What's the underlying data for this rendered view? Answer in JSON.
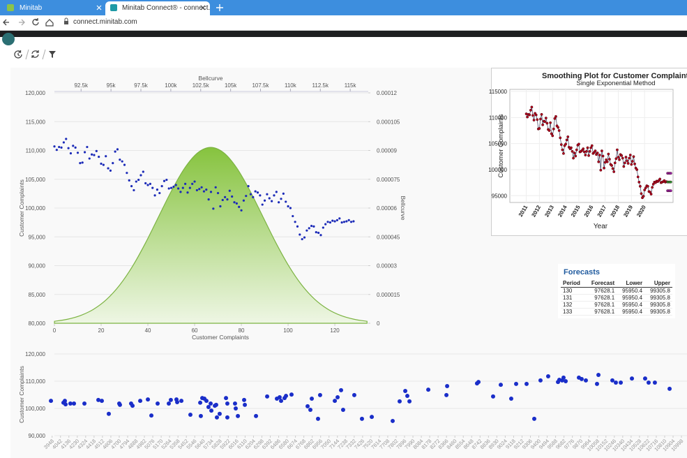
{
  "browser": {
    "tabs": [
      "Minitab",
      "Minitab Connect® - connect.mi"
    ],
    "url": "connect.minitab.com"
  },
  "forecast_table": {
    "title": "Forecasts",
    "columns": [
      "Period",
      "Forecast",
      "Lower",
      "Upper"
    ],
    "rows": [
      [
        130,
        97628.1,
        95950.4,
        99305.8
      ],
      [
        131,
        97628.1,
        95950.4,
        99305.8
      ],
      [
        132,
        97628.1,
        95950.4,
        99305.8
      ],
      [
        133,
        97628.1,
        95950.4,
        99305.8
      ]
    ]
  },
  "chart_data": [
    {
      "type": "scatter",
      "x_label": "Customer Complaints",
      "y_label": "Customer Complaints",
      "x2_label": "Bellcurve",
      "y2_label": "Bellcurve",
      "xlim": [
        0,
        134
      ],
      "xticks": [
        0,
        20,
        40,
        60,
        80,
        100,
        120
      ],
      "ylim": [
        80000,
        120000
      ],
      "yticks": [
        {
          "value": 80000,
          "label": "80,000"
        },
        {
          "value": 85000,
          "label": "85,000"
        },
        {
          "value": 90000,
          "label": "90,000"
        },
        {
          "value": 95000,
          "label": "95,000"
        },
        {
          "value": 100000,
          "label": "100,000"
        },
        {
          "value": 105000,
          "label": "105,000"
        },
        {
          "value": 110000,
          "label": "110,000"
        },
        {
          "value": 115000,
          "label": "115,000"
        },
        {
          "value": 120000,
          "label": "120,000"
        }
      ],
      "x2lim": [
        90270,
        116450
      ],
      "x2ticks": [
        {
          "value": 92500,
          "label": "92.5k"
        },
        {
          "value": 95000,
          "label": "95k"
        },
        {
          "value": 97500,
          "label": "97.5k"
        },
        {
          "value": 100000,
          "label": "100k"
        },
        {
          "value": 102500,
          "label": "102.5k"
        },
        {
          "value": 105000,
          "label": "105k"
        },
        {
          "value": 107500,
          "label": "107.5k"
        },
        {
          "value": 110000,
          "label": "110k"
        },
        {
          "value": 112500,
          "label": "112.5k"
        },
        {
          "value": 115000,
          "label": "115k"
        }
      ],
      "y2lim": [
        0,
        0.00012
      ],
      "y2ticks": [
        0,
        1.5e-05,
        3e-05,
        4.5e-05,
        6e-05,
        7.5e-05,
        9e-05,
        0.000105,
        0.00012
      ],
      "grid": true,
      "series": [
        {
          "type": "area",
          "axis": "y2",
          "color": "#7cb342",
          "x": [
            90275,
            91364,
            92453,
            93541,
            94630,
            95719,
            96808,
            97896,
            98985,
            100074,
            101163,
            102251,
            103340,
            104429,
            105518,
            106606,
            107695,
            108784,
            109873,
            110961,
            112050,
            113139,
            114228,
            115316,
            116405
          ],
          "values": [
            1.02e-06,
            2.09e-06,
            4.02e-06,
            7.29e-06,
            1.239e-05,
            1.981e-05,
            2.974e-05,
            4.193e-05,
            5.556e-05,
            6.914e-05,
            8.084e-05,
            8.878e-05,
            9.16e-05,
            8.878e-05,
            8.084e-05,
            6.914e-05,
            5.556e-05,
            4.193e-05,
            2.974e-05,
            1.981e-05,
            1.239e-05,
            7.29e-06,
            4.02e-06,
            2.09e-06,
            1.02e-06
          ]
        },
        {
          "type": "scatter",
          "color": "#1c2bb8",
          "values": [
            110700,
            110100,
            110600,
            110500,
            111400,
            112000,
            110400,
            109500,
            110800,
            110500,
            109600,
            107800,
            107900,
            109700,
            110600,
            108600,
            109300,
            109200,
            109900,
            108900,
            107700,
            107500,
            109000,
            106900,
            106500,
            107800,
            109800,
            110200,
            108400,
            108100,
            107500,
            106100,
            104800,
            103800,
            103100,
            104600,
            104900,
            105700,
            106300,
            104300,
            104000,
            104200,
            103500,
            102200,
            103200,
            102600,
            103800,
            104700,
            104900,
            103400,
            103500,
            103700,
            104000,
            103400,
            102800,
            103500,
            104200,
            102700,
            103500,
            104200,
            104600,
            103100,
            103300,
            103600,
            102900,
            103200,
            101500,
            102800,
            99900,
            103600,
            102600,
            100300,
            101400,
            101900,
            101500,
            103000,
            102000,
            101000,
            100800,
            100200,
            99600,
            101300,
            102100,
            103800,
            102400,
            101900,
            102900,
            102700,
            102200,
            100600,
            101300,
            102400,
            101700,
            101200,
            102200,
            102800,
            101000,
            101600,
            102500,
            101100,
            100300,
            100000,
            98600,
            97600,
            96800,
            95400,
            94600,
            94900,
            96100,
            96500,
            96900,
            96800,
            95800,
            95700,
            95300,
            96600,
            97200,
            97600,
            97500,
            97800,
            97700,
            97900,
            98200,
            97500,
            97600,
            97700,
            97900,
            97600,
            97700
          ]
        }
      ]
    },
    {
      "type": "line",
      "title": "Smoothing Plot for Customer Complaint",
      "subtitle": "Single Exponential Method",
      "x_label": "Year",
      "y_label": "Customer Complaints",
      "xlim": [
        -15,
        134
      ],
      "xticks": [
        {
          "value": 0,
          "label": "2011"
        },
        {
          "value": 12,
          "label": "2012"
        },
        {
          "value": 24,
          "label": "2013"
        },
        {
          "value": 36,
          "label": "2014"
        },
        {
          "value": 48,
          "label": "2015"
        },
        {
          "value": 60,
          "label": "2016"
        },
        {
          "value": 72,
          "label": "2017"
        },
        {
          "value": 84,
          "label": "2018"
        },
        {
          "value": 96,
          "label": "2019"
        },
        {
          "value": 108,
          "label": "2020"
        }
      ],
      "ylim": [
        93700,
        115400
      ],
      "yticks": [
        95000,
        100000,
        105000,
        110000,
        115000
      ],
      "grid": true,
      "series": [
        {
          "color": "#b0001e",
          "values": [
            110700,
            110100,
            110600,
            110500,
            111400,
            112000,
            110400,
            109500,
            110800,
            110500,
            109600,
            107800,
            107900,
            109700,
            110600,
            108600,
            109300,
            109200,
            109900,
            108900,
            107700,
            107500,
            109000,
            106900,
            106500,
            107800,
            109800,
            110200,
            108400,
            108100,
            107500,
            106100,
            104800,
            103800,
            103100,
            104600,
            104900,
            105700,
            106300,
            104300,
            104000,
            104200,
            103500,
            102200,
            103200,
            102600,
            103800,
            104700,
            104900,
            103400,
            103500,
            103700,
            104000,
            103400,
            102800,
            103500,
            104200,
            102700,
            103500,
            104200,
            104600,
            103100,
            103300,
            103600,
            102900,
            103200,
            101500,
            102800,
            99900,
            103600,
            102600,
            100300,
            101400,
            101900,
            101500,
            103000,
            102000,
            101000,
            100800,
            100200,
            99600,
            101300,
            102100,
            103800,
            102400,
            101900,
            102900,
            102700,
            102200,
            100600,
            101300,
            102400,
            101700,
            101200,
            102200,
            102800,
            101000,
            101600,
            102500,
            101100,
            100300,
            100000,
            98600,
            97600,
            96800,
            95400,
            94600,
            94900,
            96100,
            96500,
            96900,
            96800,
            95800,
            95700,
            95300,
            96600,
            97200,
            97600,
            97500,
            97800,
            97700,
            97900,
            98200,
            97500,
            97600,
            97700,
            97900,
            97600,
            97700
          ]
        },
        {
          "color": "#2e9d3a",
          "x": [
            129,
            130,
            131,
            132
          ],
          "values": [
            97628.1,
            97628.1,
            97628.1,
            97628.1
          ]
        },
        {
          "color": "#9c27b0",
          "x": [
            129,
            130,
            131,
            132
          ],
          "values": [
            95950.4,
            95950.4,
            95950.4,
            95950.4
          ]
        },
        {
          "color": "#9c27b0",
          "x": [
            129,
            130,
            131,
            132
          ],
          "values": [
            99305.8,
            99305.8,
            99305.8,
            99305.8
          ]
        }
      ]
    },
    {
      "type": "scatter",
      "y_label": "Customer Complaints",
      "xlim": [
        3880,
        11060
      ],
      "xticks": [
        3948,
        4042,
        4136,
        4230,
        4324,
        4418,
        4512,
        4606,
        4700,
        4794,
        4888,
        4982,
        5076,
        5170,
        5264,
        5358,
        5452,
        5546,
        5640,
        5734,
        5828,
        5922,
        6016,
        6110,
        6204,
        6298,
        6392,
        6486,
        6580,
        6674,
        6768,
        6862,
        6956,
        7050,
        7144,
        7238,
        7332,
        7426,
        7520,
        7614,
        7708,
        7802,
        7896,
        7990,
        8084,
        8178,
        8272,
        8366,
        8460,
        8554,
        8648,
        8742,
        8836,
        8930,
        9024,
        9118,
        9212,
        9306,
        9400,
        9494,
        9588,
        9682,
        9776,
        9870,
        9964,
        10058,
        10152,
        10246,
        10340,
        10434,
        10528,
        10622,
        10716,
        10810,
        10904,
        10998
      ],
      "ylim": [
        90000,
        120000
      ],
      "yticks": [
        {
          "value": 90000,
          "label": "90,000"
        },
        {
          "value": 100000,
          "label": "100,000"
        },
        {
          "value": 110000,
          "label": "110,000"
        },
        {
          "value": 120000,
          "label": "120,000"
        }
      ],
      "grid": true,
      "series": [
        {
          "color": "#1a2ec9",
          "x": [
            3935,
            4075,
            4091,
            4099,
            4153,
            4193,
            4310,
            4466,
            4505,
            4583,
            4700,
            4708,
            4833,
            4849,
            4935,
            5021,
            5060,
            5130,
            5255,
            5278,
            5341,
            5349,
            5396,
            5497,
            5607,
            5614,
            5630,
            5654,
            5677,
            5700,
            5724,
            5732,
            5771,
            5786,
            5794,
            5825,
            5896,
            5911,
            5911,
            5997,
            6005,
            6029,
            6099,
            6107,
            6232,
            6357,
            6466,
            6497,
            6513,
            6552,
            6568,
            6630,
            6810,
            6841,
            6857,
            6927,
            6950,
            7115,
            7146,
            7185,
            7208,
            7333,
            7419,
            7529,
            7763,
            7841,
            7904,
            7927,
            7951,
            8162,
            8365,
            8373,
            8708,
            8724,
            8888,
            8974,
            9091,
            9146,
            9263,
            9349,
            9419,
            9505,
            9615,
            9630,
            9661,
            9677,
            9701,
            9849,
            9880,
            9927,
            10052,
            10068,
            10224,
            10263,
            10318,
            10443,
            10591,
            10630,
            10700,
            10865
          ],
          "values": [
            102800,
            102100,
            102800,
            101500,
            101800,
            101800,
            101800,
            103100,
            102800,
            98000,
            101800,
            101300,
            101800,
            101000,
            102800,
            103300,
            97400,
            101800,
            101800,
            103100,
            103300,
            102300,
            102800,
            97700,
            102100,
            97200,
            103800,
            103600,
            102800,
            100500,
            101800,
            99200,
            101000,
            101300,
            96700,
            98000,
            103800,
            101800,
            96700,
            101800,
            100000,
            97200,
            103100,
            101300,
            97200,
            104400,
            103600,
            104100,
            102800,
            103800,
            104600,
            105100,
            100800,
            99500,
            103600,
            96200,
            104900,
            102800,
            104100,
            106700,
            99500,
            104900,
            96200,
            96900,
            95400,
            102600,
            106400,
            104600,
            102600,
            106900,
            104900,
            108200,
            109200,
            109700,
            104400,
            108700,
            103600,
            109000,
            109000,
            96200,
            110300,
            111800,
            109700,
            110500,
            110300,
            111300,
            110000,
            111300,
            110800,
            110300,
            109000,
            112300,
            110300,
            109500,
            109500,
            111000,
            111000,
            109500,
            109500,
            107200
          ]
        }
      ]
    }
  ]
}
